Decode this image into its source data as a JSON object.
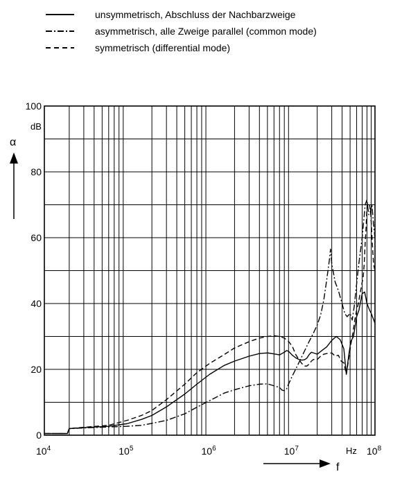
{
  "chart_data": {
    "type": "line",
    "title": "",
    "xlabel": "f",
    "x_unit": "Hz",
    "ylabel": "α",
    "y_unit": "dB",
    "x_scale": "log",
    "xlim": [
      10000,
      100000000
    ],
    "ylim": [
      0,
      100
    ],
    "grid": true,
    "legend_position": "top-left",
    "x_ticks": [
      {
        "value": 10000,
        "base": "10",
        "exp": "4"
      },
      {
        "value": 100000,
        "base": "10",
        "exp": "5"
      },
      {
        "value": 1000000,
        "base": "10",
        "exp": "6"
      },
      {
        "value": 10000000,
        "base": "10",
        "exp": "7"
      },
      {
        "value": 100000000,
        "base": "10",
        "exp": "8"
      }
    ],
    "y_ticks": [
      {
        "value": 0,
        "label": "0"
      },
      {
        "value": 20,
        "label": "20"
      },
      {
        "value": 40,
        "label": "40"
      },
      {
        "value": 60,
        "label": "60"
      },
      {
        "value": 80,
        "label": "80"
      },
      {
        "value": 100,
        "label": "100"
      }
    ],
    "series": [
      {
        "name": "unsymmetrisch, Abschluss der Nachbarzweige",
        "dash": "solid",
        "points": [
          [
            10000,
            0.5
          ],
          [
            19000,
            0.5
          ],
          [
            20000,
            2
          ],
          [
            30000,
            2.3
          ],
          [
            60000,
            2.7
          ],
          [
            100000,
            3.5
          ],
          [
            150000,
            4.8
          ],
          [
            200000,
            6
          ],
          [
            300000,
            8.6
          ],
          [
            500000,
            12.5
          ],
          [
            700000,
            15.5
          ],
          [
            1000000,
            18.5
          ],
          [
            1500000,
            21.2
          ],
          [
            2000000,
            22.5
          ],
          [
            3000000,
            24
          ],
          [
            4000000,
            24.8
          ],
          [
            5000000,
            25
          ],
          [
            6000000,
            24.7
          ],
          [
            7000000,
            24.4
          ],
          [
            8000000,
            25.2
          ],
          [
            8500000,
            25.7
          ],
          [
            9000000,
            25.5
          ],
          [
            10000000,
            24.3
          ],
          [
            11000000,
            23.5
          ],
          [
            12000000,
            23
          ],
          [
            13000000,
            22.8
          ],
          [
            14000000,
            22.9
          ],
          [
            15000000,
            23.4
          ],
          [
            16000000,
            24.5
          ],
          [
            17000000,
            25.2
          ],
          [
            18000000,
            25
          ],
          [
            20000000,
            24.6
          ],
          [
            23000000,
            25.8
          ],
          [
            26000000,
            26.8
          ],
          [
            30000000,
            28.8
          ],
          [
            34000000,
            30
          ],
          [
            38000000,
            29
          ],
          [
            42000000,
            26.2
          ],
          [
            45000000,
            18.5
          ],
          [
            48000000,
            24
          ],
          [
            51000000,
            28.5
          ],
          [
            55000000,
            30
          ],
          [
            60000000,
            36
          ],
          [
            64000000,
            38
          ],
          [
            70000000,
            43
          ],
          [
            75000000,
            43.5
          ],
          [
            80000000,
            40
          ],
          [
            86000000,
            38
          ],
          [
            90000000,
            37
          ],
          [
            100000000,
            34
          ]
        ]
      },
      {
        "name": "asymmetrisch, alle Zweige parallel (common mode)",
        "dash": "dashdot",
        "points": [
          [
            10000,
            0.5
          ],
          [
            19000,
            0.5
          ],
          [
            20000,
            2
          ],
          [
            30000,
            2.2
          ],
          [
            60000,
            2.5
          ],
          [
            100000,
            2.7
          ],
          [
            150000,
            3
          ],
          [
            200000,
            3.6
          ],
          [
            300000,
            4.5
          ],
          [
            500000,
            6.5
          ],
          [
            700000,
            8.5
          ],
          [
            1000000,
            10.5
          ],
          [
            1500000,
            12.8
          ],
          [
            2000000,
            13.8
          ],
          [
            3000000,
            15
          ],
          [
            4000000,
            15.5
          ],
          [
            5000000,
            15.6
          ],
          [
            6000000,
            15
          ],
          [
            7000000,
            14.5
          ],
          [
            7500000,
            13.7
          ],
          [
            8000000,
            13.5
          ],
          [
            8500000,
            14
          ],
          [
            9000000,
            15.5
          ],
          [
            10000000,
            18
          ],
          [
            12000000,
            22
          ],
          [
            14000000,
            25.5
          ],
          [
            16000000,
            28.5
          ],
          [
            18000000,
            31
          ],
          [
            20000000,
            33.5
          ],
          [
            22000000,
            36.5
          ],
          [
            24000000,
            41
          ],
          [
            26000000,
            47
          ],
          [
            28000000,
            53
          ],
          [
            29000000,
            56.5
          ],
          [
            30000000,
            52
          ],
          [
            33000000,
            46.5
          ],
          [
            36000000,
            44
          ],
          [
            40000000,
            40
          ],
          [
            43000000,
            37
          ],
          [
            46000000,
            36
          ],
          [
            50000000,
            37
          ],
          [
            53000000,
            35
          ],
          [
            56000000,
            39
          ],
          [
            60000000,
            46
          ],
          [
            63000000,
            51
          ],
          [
            66000000,
            55
          ],
          [
            70000000,
            60
          ],
          [
            73000000,
            65
          ],
          [
            76000000,
            70
          ],
          [
            80000000,
            71.5
          ],
          [
            84000000,
            67
          ],
          [
            88000000,
            68
          ],
          [
            92000000,
            70
          ],
          [
            96000000,
            64
          ],
          [
            100000000,
            60
          ]
        ]
      },
      {
        "name": "symmetrisch (differential mode)",
        "dash": "dashed",
        "points": [
          [
            10000,
            0.5
          ],
          [
            19000,
            0.5
          ],
          [
            20000,
            2
          ],
          [
            30000,
            2.4
          ],
          [
            60000,
            3
          ],
          [
            100000,
            4.5
          ],
          [
            150000,
            6
          ],
          [
            200000,
            7.5
          ],
          [
            300000,
            10.8
          ],
          [
            500000,
            15.5
          ],
          [
            700000,
            19
          ],
          [
            1000000,
            21.8
          ],
          [
            1500000,
            24.5
          ],
          [
            2000000,
            26.5
          ],
          [
            3000000,
            28.4
          ],
          [
            4000000,
            29.5
          ],
          [
            5000000,
            30
          ],
          [
            6000000,
            30.2
          ],
          [
            7000000,
            30
          ],
          [
            8000000,
            29.5
          ],
          [
            9000000,
            28.5
          ],
          [
            10000000,
            27
          ],
          [
            11000000,
            24.5
          ],
          [
            12000000,
            23
          ],
          [
            13000000,
            21.8
          ],
          [
            14000000,
            21
          ],
          [
            15000000,
            21
          ],
          [
            16000000,
            21.6
          ],
          [
            17000000,
            22.5
          ],
          [
            18000000,
            23
          ],
          [
            20000000,
            23
          ],
          [
            22000000,
            24
          ],
          [
            24000000,
            24.6
          ],
          [
            26000000,
            24.8
          ],
          [
            30000000,
            25
          ],
          [
            33000000,
            24
          ],
          [
            36000000,
            24.3
          ],
          [
            39000000,
            22.5
          ],
          [
            42000000,
            22
          ],
          [
            45000000,
            18.5
          ],
          [
            48000000,
            23
          ],
          [
            51000000,
            27.5
          ],
          [
            54000000,
            31
          ],
          [
            57000000,
            35
          ],
          [
            60000000,
            38
          ],
          [
            63000000,
            40
          ],
          [
            66000000,
            43
          ],
          [
            70000000,
            46.5
          ],
          [
            72000000,
            48
          ],
          [
            74000000,
            52
          ],
          [
            76000000,
            58
          ],
          [
            78000000,
            63
          ],
          [
            80000000,
            69
          ],
          [
            83000000,
            70.5
          ],
          [
            86000000,
            70
          ],
          [
            89000000,
            67
          ],
          [
            92000000,
            60
          ],
          [
            96000000,
            52
          ],
          [
            100000000,
            50
          ]
        ]
      }
    ]
  }
}
